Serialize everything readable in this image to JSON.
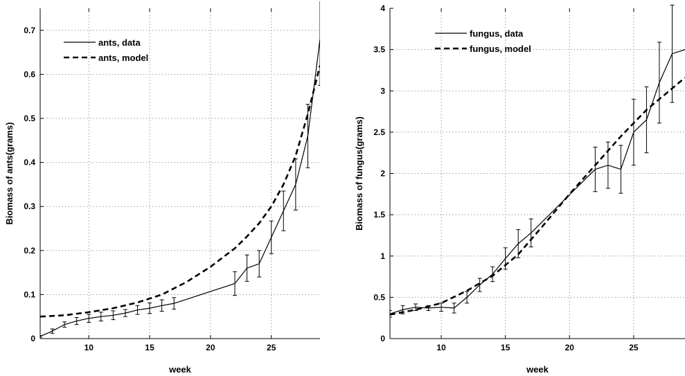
{
  "chart_data": [
    {
      "type": "line",
      "xlabel": "week",
      "ylabel": "Biomass of ants(grams)",
      "xlim": [
        6,
        29
      ],
      "ylim": [
        0,
        0.75
      ],
      "xticks": [
        "10",
        "15",
        "20",
        "25"
      ],
      "yticks": [
        "0",
        "0.1",
        "0.2",
        "0.3",
        "0.4",
        "0.5",
        "0.6",
        "0.7"
      ],
      "grid": true,
      "legend_position": "top-left",
      "series": [
        {
          "name": "ants, data",
          "style": "solid",
          "x": [
            6,
            7,
            8,
            9,
            10,
            11,
            12,
            13,
            14,
            15,
            16,
            17,
            22,
            23,
            24,
            25,
            26,
            27,
            28,
            29
          ],
          "y": [
            0.005,
            0.017,
            0.032,
            0.04,
            0.046,
            0.05,
            0.053,
            0.058,
            0.065,
            0.069,
            0.075,
            0.08,
            0.125,
            0.16,
            0.17,
            0.23,
            0.29,
            0.35,
            0.46,
            0.68
          ],
          "err": [
            0.002,
            0.005,
            0.006,
            0.008,
            0.009,
            0.01,
            0.01,
            0.008,
            0.01,
            0.012,
            0.013,
            0.013,
            0.027,
            0.03,
            0.03,
            0.037,
            0.045,
            0.058,
            0.072,
            0.105
          ]
        },
        {
          "name": "ants, model",
          "style": "dashed",
          "x": [
            6,
            8,
            10,
            12,
            14,
            16,
            18,
            20,
            22,
            23,
            24,
            25,
            26,
            27,
            28,
            29
          ],
          "y": [
            0.05,
            0.053,
            0.06,
            0.069,
            0.082,
            0.1,
            0.128,
            0.163,
            0.205,
            0.232,
            0.262,
            0.3,
            0.35,
            0.415,
            0.51,
            0.62
          ]
        }
      ]
    },
    {
      "type": "line",
      "xlabel": "week",
      "ylabel": "Biomass of fungus(grams)",
      "xlim": [
        6,
        29
      ],
      "ylim": [
        0,
        4
      ],
      "xticks": [
        "10",
        "15",
        "20",
        "25"
      ],
      "yticks": [
        "0",
        "0.5",
        "1",
        "1.5",
        "2",
        "2.5",
        "3",
        "3.5",
        "4"
      ],
      "grid": true,
      "legend_position": "top-left",
      "series": [
        {
          "name": "fungus, data",
          "style": "solid",
          "x": [
            6,
            7,
            8,
            9,
            10,
            11,
            12,
            13,
            14,
            15,
            16,
            17,
            22,
            23,
            24,
            25,
            26,
            27,
            28,
            29
          ],
          "y": [
            0.3,
            0.35,
            0.38,
            0.37,
            0.38,
            0.37,
            0.5,
            0.65,
            0.78,
            0.97,
            1.15,
            1.28,
            2.05,
            2.1,
            2.05,
            2.5,
            2.65,
            3.1,
            3.45,
            3.5
          ],
          "err": [
            0.04,
            0.05,
            0.04,
            0.03,
            0.05,
            0.06,
            0.07,
            0.08,
            0.09,
            0.13,
            0.17,
            0.17,
            0.27,
            0.28,
            0.29,
            0.4,
            0.4,
            0.49,
            0.59,
            0
          ]
        },
        {
          "name": "fungus, model",
          "style": "dashed",
          "x": [
            6,
            8,
            10,
            12,
            14,
            16,
            18,
            20,
            22,
            24,
            26,
            28,
            29
          ],
          "y": [
            0.29,
            0.35,
            0.43,
            0.58,
            0.76,
            1.02,
            1.38,
            1.75,
            2.1,
            2.45,
            2.77,
            3.03,
            3.16
          ]
        }
      ]
    }
  ]
}
